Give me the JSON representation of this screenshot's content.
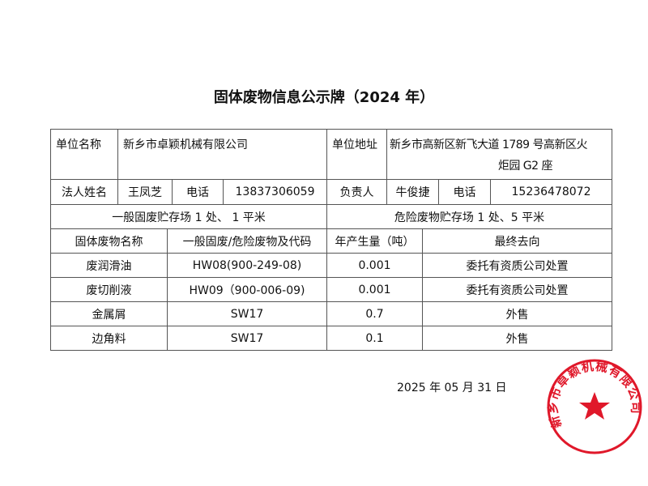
{
  "title": "固体废物信息公示牌（2024 年）",
  "info": {
    "unit_name_label": "单位名称",
    "unit_name": "新乡市卓颖机械有限公司",
    "unit_addr_label": "单位地址",
    "unit_addr_line1": "新乡市高新区新飞大道 1789 号高新区火",
    "unit_addr_line2": "炬园 G2 座",
    "legal_label": "法人姓名",
    "legal_name": "王凤芝",
    "phone_label": "电话",
    "legal_phone": "13837306059",
    "manager_label": "负责人",
    "manager_name": "牛俊捷",
    "manager_phone": "15236478072",
    "general_storage": "一般固废贮存场 1 处、 1 平米",
    "hazard_storage": "危险废物贮存场 1 处、5 平米"
  },
  "table": {
    "headers": [
      "固体废物名称",
      "一般固废/危险废物及代码",
      "年产生量（吨）",
      "最终去向"
    ],
    "rows": [
      [
        "废润滑油",
        "HW08(900-249-08)",
        "0.001",
        "委托有资质公司处置"
      ],
      [
        "废切削液",
        "HW09（900-006-09)",
        "0.001",
        "委托有资质公司处置"
      ],
      [
        "金属屑",
        "SW17",
        "0.7",
        "外售"
      ],
      [
        "边角料",
        "SW17",
        "0.1",
        "外售"
      ]
    ]
  },
  "date": "2025 年  05  月  31  日",
  "stamp": {
    "text": "新乡市卓颖机械有限公司",
    "color": "#e0182a"
  }
}
